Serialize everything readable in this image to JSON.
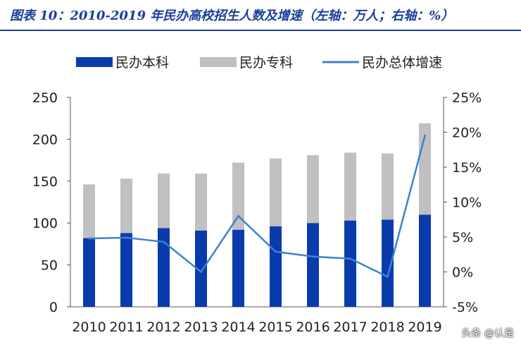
{
  "title": "图表 10：2010-2019 年民办高校招生人数及增速（左轴：万人；右轴：%）",
  "watermark": "头条 @认是",
  "chart_data": {
    "type": "bar",
    "categories": [
      "2010",
      "2011",
      "2012",
      "2013",
      "2014",
      "2015",
      "2016",
      "2017",
      "2018",
      "2019"
    ],
    "series": [
      {
        "name": "民办本科",
        "type": "bar",
        "stack": "total",
        "axis": "left",
        "color": "#0a3bad",
        "values": [
          82,
          88,
          94,
          91,
          92,
          96,
          100,
          103,
          104,
          110
        ]
      },
      {
        "name": "民办专科",
        "type": "bar",
        "stack": "total",
        "axis": "left",
        "color": "#c0bfc1",
        "values": [
          64,
          65,
          65,
          68,
          80,
          81,
          81,
          81,
          79,
          109
        ]
      },
      {
        "name": "民办总体增速",
        "type": "line",
        "axis": "right",
        "color": "#3c83cc",
        "values": [
          4.8,
          4.9,
          4.3,
          0.0,
          8.0,
          2.9,
          2.2,
          1.9,
          -0.7,
          19.5
        ]
      }
    ],
    "left_axis": {
      "ylim": [
        0,
        250
      ],
      "ticks": [
        0,
        50,
        100,
        150,
        200,
        250
      ]
    },
    "right_axis": {
      "ylim": [
        -5,
        25
      ],
      "ticks": [
        -5,
        0,
        5,
        10,
        15,
        20,
        25
      ],
      "tick_labels": [
        "-5%",
        "0%",
        "5%",
        "10%",
        "15%",
        "20%",
        "25%"
      ]
    },
    "legend_position": "top",
    "grid": false
  }
}
